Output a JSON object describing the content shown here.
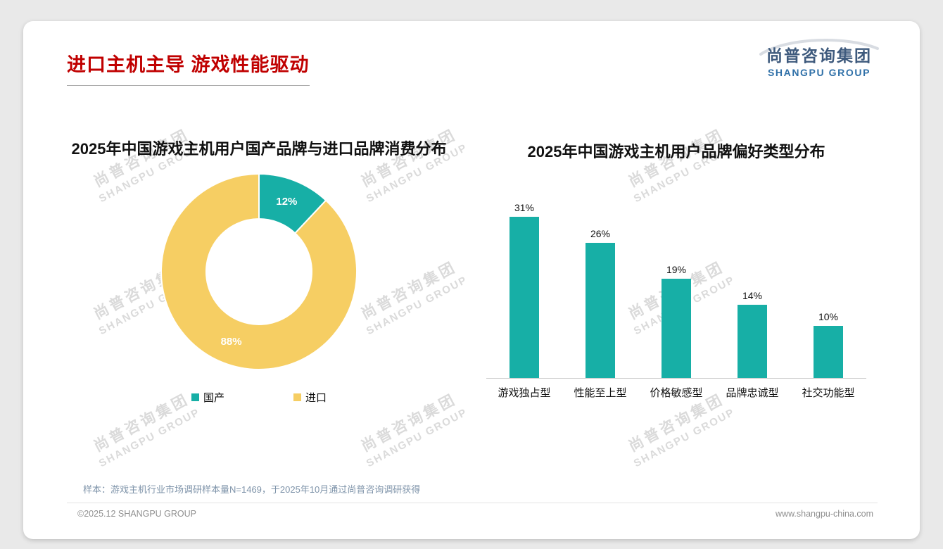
{
  "page": {
    "title": "进口主机主导 游戏性能驱动",
    "logo": {
      "cn": "尚普咨询集团",
      "en": "SHANGPU GROUP"
    },
    "watermark": {
      "cn": "尚普咨询集团",
      "en": "SHANGPU GROUP"
    },
    "footnote": "样本：游戏主机行业市场调研样本量N=1469，于2025年10月通过尚普咨询调研获得",
    "footer": {
      "left": "©2025.12 SHANGPU GROUP",
      "right": "www.shangpu-china.com"
    }
  },
  "colors": {
    "teal": "#17AFA6",
    "yellow": "#F6CE63",
    "title_red": "#C00000"
  },
  "chart_data": [
    {
      "type": "pie",
      "subtype": "donut",
      "title": "2025年中国游戏主机用户国产品牌与进口品牌消费分布",
      "labels": [
        "国产",
        "进口"
      ],
      "values": [
        12,
        88
      ],
      "unit": "%",
      "data_labels": [
        "12%",
        "88%"
      ],
      "colors": [
        "#17AFA6",
        "#F6CE63"
      ],
      "legend_position": "bottom",
      "start_angle_deg": 0
    },
    {
      "type": "bar",
      "title": "2025年中国游戏主机用户品牌偏好类型分布",
      "categories": [
        "游戏独占型",
        "性能至上型",
        "价格敏感型",
        "品牌忠诚型",
        "社交功能型"
      ],
      "values": [
        31,
        26,
        19,
        14,
        10
      ],
      "unit": "%",
      "data_labels": [
        "31%",
        "26%",
        "19%",
        "14%",
        "10%"
      ],
      "bar_color": "#17AFA6",
      "ylim": [
        0,
        33
      ],
      "grid": false,
      "legend": false,
      "baseline_axis": true
    }
  ]
}
